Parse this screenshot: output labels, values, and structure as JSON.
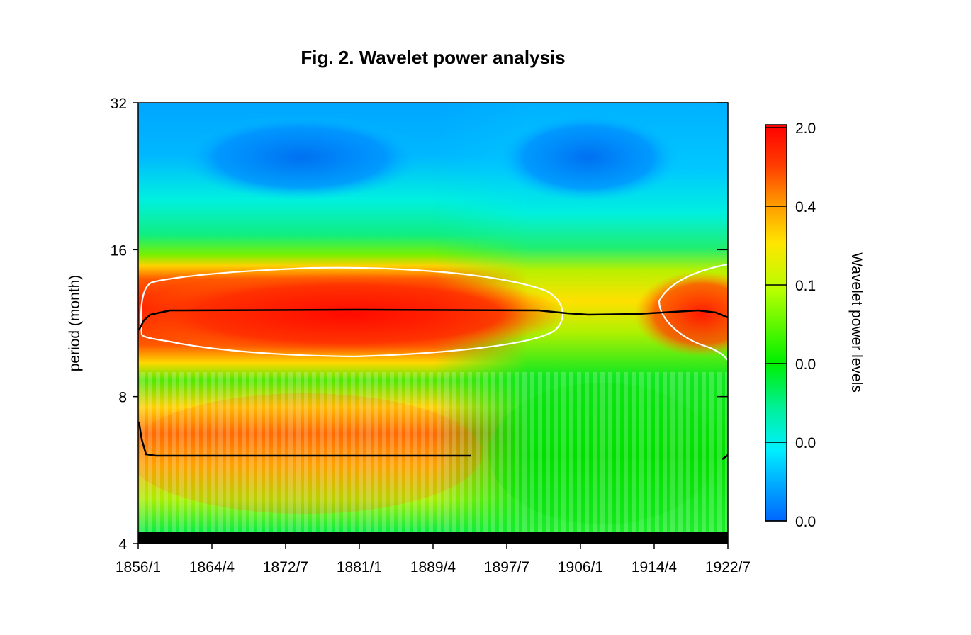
{
  "chart_data": {
    "type": "heatmap",
    "title": "Fig. 2. Wavelet power analysis",
    "xlabel": "",
    "ylabel": "period (month)",
    "x_ticks": [
      "1856/1",
      "1864/4",
      "1872/7",
      "1881/1",
      "1889/4",
      "1897/7",
      "1906/1",
      "1914/4",
      "1922/7"
    ],
    "y_ticks": [
      4,
      8,
      16,
      32
    ],
    "y_scale": "log2",
    "ylim": [
      4,
      32
    ],
    "colorbar": {
      "label": "Wavelet power levels",
      "tick_labels": [
        "2.0",
        "0.4",
        "0.1",
        "0.0",
        "0.0",
        "0.0"
      ],
      "colors": [
        "#ff0000",
        "#ff6600",
        "#ffcc00",
        "#ccff00",
        "#00ff00",
        "#00ffcc",
        "#00bfff",
        "#0066ff"
      ]
    },
    "significance_contour_color": "#ffffff",
    "ridge_line_color": "#000000",
    "ridges": [
      {
        "from": "1856/1",
        "to": "1922/7",
        "period": 12.5
      },
      {
        "from": "1856/1",
        "to": "1894/1",
        "period": 6.0
      }
    ],
    "high_power_regions": [
      {
        "from": "1856/1",
        "to": "1904/1",
        "period_min": 10.1,
        "period_max": 15.1,
        "level": "2.0"
      },
      {
        "from": "1914/4",
        "to": "1922/7",
        "period_min": 10.1,
        "period_max": 15.1,
        "level": "2.0"
      },
      {
        "from": "1856/1",
        "to": "1894/1",
        "period_min": 4.6,
        "period_max": 7.6,
        "level": "0.4"
      }
    ]
  }
}
